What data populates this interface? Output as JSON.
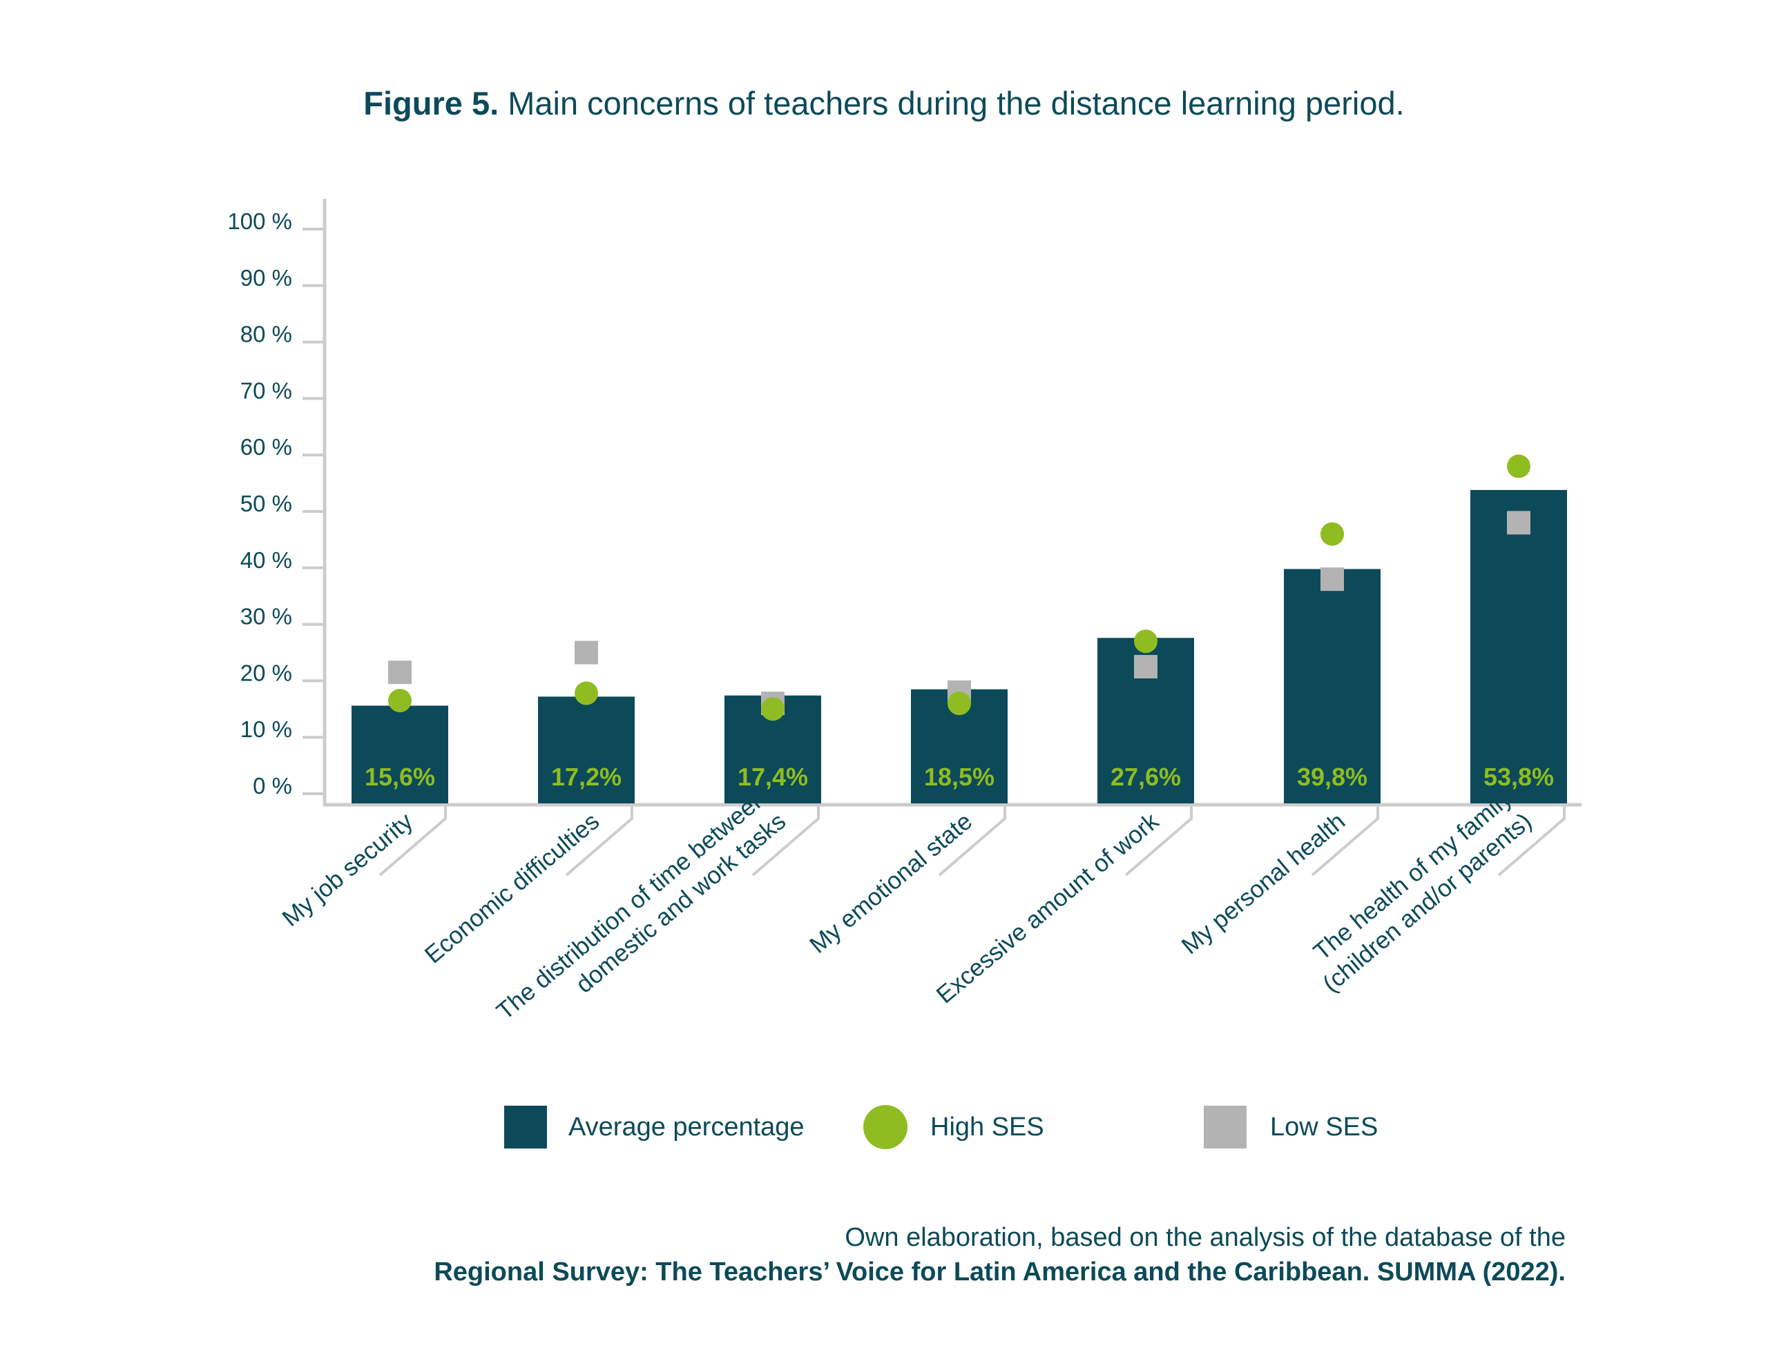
{
  "title": {
    "prefix": "Figure 5.",
    "text": "Main concerns of teachers during the distance learning period."
  },
  "source": {
    "line1": "Own elaboration, based on the analysis of the database of the",
    "line2": "Regional Survey: The Teachers’ Voice for Latin America and the Caribbean. SUMMA (2022)."
  },
  "colors": {
    "bar": "#0c4a59",
    "high_ses": "#8fbc21",
    "low_ses": "#b3b3b3",
    "bar_label": "#8fbc21",
    "text": "#0c4a59",
    "axis": "#cccccc"
  },
  "chart_data": {
    "type": "bar",
    "title": "",
    "xlabel": "",
    "ylabel": "",
    "ylim": [
      0,
      100
    ],
    "y_ticks": [
      "0 %",
      "10 %",
      "20 %",
      "30 %",
      "40 %",
      "50 %",
      "60 %",
      "70 %",
      "80 %",
      "90 %",
      "100 %"
    ],
    "grid": false,
    "legend_position": "bottom",
    "categories": [
      [
        "My job security"
      ],
      [
        "Economic difficulties"
      ],
      [
        "The distribution of time between",
        "domestic and work tasks"
      ],
      [
        "My emotional state"
      ],
      [
        "Excessive amount of work"
      ],
      [
        "My personal health"
      ],
      [
        "The health of my family",
        "(children and/or parents)"
      ]
    ],
    "series": [
      {
        "name": "Average percentage",
        "marker": "bar",
        "values": [
          15.6,
          17.2,
          17.4,
          18.5,
          27.6,
          39.8,
          53.8
        ],
        "labels": [
          "15,6%",
          "17,2%",
          "17,4%",
          "18,5%",
          "27,6%",
          "39,8%",
          "53,8%"
        ]
      },
      {
        "name": "High SES",
        "marker": "circle",
        "values": [
          16.5,
          17.8,
          15.0,
          16.0,
          27.0,
          46.0,
          58.0
        ]
      },
      {
        "name": "Low SES",
        "marker": "square",
        "values": [
          21.5,
          25.0,
          16.0,
          18.0,
          22.5,
          38.0,
          48.0
        ]
      }
    ]
  }
}
